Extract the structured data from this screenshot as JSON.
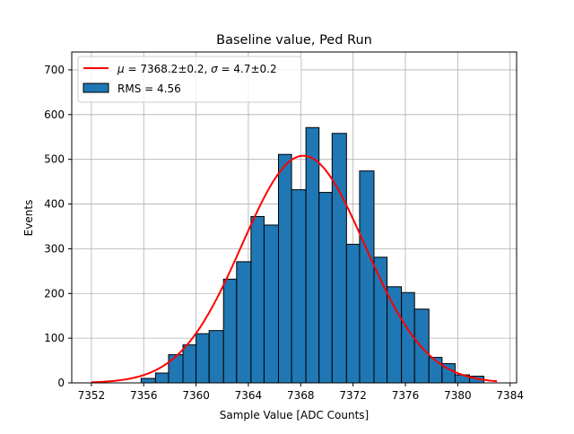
{
  "chart_data": {
    "type": "bar",
    "title": "Baseline value, Ped Run",
    "xlabel": "Sample Value [ADC Counts]",
    "ylabel": "Events",
    "xlim": [
      7350.5,
      7384.5
    ],
    "ylim": [
      0,
      740
    ],
    "xticks": [
      7352,
      7356,
      7360,
      7364,
      7368,
      7372,
      7376,
      7380,
      7384
    ],
    "yticks": [
      0,
      100,
      200,
      300,
      400,
      500,
      600,
      700
    ],
    "grid": true,
    "legend_position": "top-left",
    "bin_edges": [
      7355.8,
      7356.9,
      7357.9,
      7359.0,
      7360.0,
      7361.0,
      7362.1,
      7363.1,
      7364.2,
      7365.2,
      7366.3,
      7367.3,
      7368.4,
      7369.4,
      7370.4,
      7371.5,
      7372.5,
      7373.6,
      7374.6,
      7375.7,
      7376.7,
      7377.8,
      7378.8,
      7379.8,
      7380.9
    ],
    "series": [
      {
        "name": "RMS = 4.56",
        "kind": "histogram",
        "color": "#1f77b4",
        "edgecolor": "#000000",
        "values": [
          10,
          22,
          63,
          85,
          110,
          117,
          232,
          271,
          372,
          353,
          511,
          432,
          571,
          426,
          558,
          310,
          474,
          281,
          215,
          202,
          165,
          57,
          43,
          18,
          15
        ]
      },
      {
        "name": "$\\mu = 7368.2\\pm0.2$, $\\sigma = 4.7\\pm0.2$",
        "kind": "gaussian-fit",
        "color": "#ff0000",
        "mu": 7368.2,
        "sigma": 4.7,
        "amplitude": 508,
        "x_range": [
          7352,
          7383
        ]
      }
    ],
    "legend": {
      "fit_label_parts": {
        "mu_sym": "μ",
        "mu_rest": " = 7368.2±0.2, ",
        "sigma_sym": "σ",
        "sigma_rest": " = 4.7±0.2"
      },
      "hist_label": "RMS = 4.56"
    }
  }
}
